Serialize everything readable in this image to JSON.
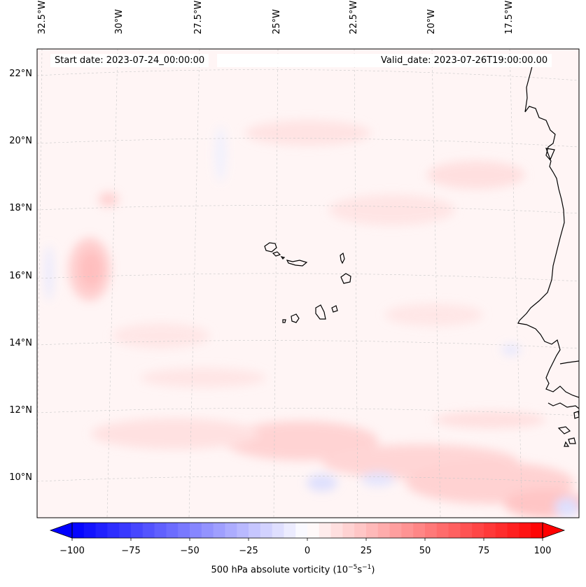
{
  "map": {
    "start_date": "Start date: 2023-07-24_00:00:00",
    "valid_date": "Valid_date: 2023-07-26T19:00:00.00",
    "lon_labels": [
      "32.5°W",
      "30°W",
      "27.5°W",
      "25°W",
      "22.5°W",
      "20°W",
      "17.5°W"
    ],
    "lat_labels": [
      "22°N",
      "20°N",
      "18°N",
      "16°N",
      "14°N",
      "12°N",
      "10°N"
    ],
    "coastline_color": "#000000",
    "field_base_color": "#fff6f6"
  },
  "colorbar": {
    "ticks": [
      "−100",
      "−75",
      "−50",
      "−25",
      "0",
      "25",
      "50",
      "75",
      "100"
    ],
    "label_text": "500 hPa absolute vorticity (10",
    "label_exp1": "−5",
    "label_mid": "s",
    "label_exp2": "−1",
    "label_end": ")",
    "min": -100,
    "max": 100,
    "levels": 41,
    "cmap": "bwr"
  }
}
